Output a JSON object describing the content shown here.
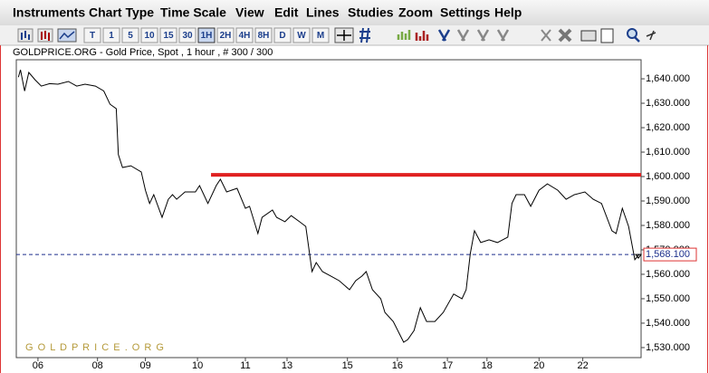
{
  "menu": [
    "Instruments",
    "Chart Type",
    "Time Scale",
    "View",
    "Edit",
    "Lines",
    "Studies",
    "Zoom",
    "Settings",
    "Help"
  ],
  "toolbar": {
    "buttons": [
      "T",
      "1",
      "5",
      "10",
      "15",
      "30",
      "1H",
      "2H",
      "4H",
      "8H",
      "D",
      "W",
      "M"
    ]
  },
  "chart_data": {
    "type": "line",
    "title": "GOLDPRICE.ORG - Gold Price, Spot , 1 hour , # 300 / 300",
    "watermark": "G O L D P R I C E . O R G",
    "x": [
      1,
      2,
      4,
      6,
      9,
      12,
      16,
      20,
      25,
      29,
      33,
      38,
      42,
      45,
      48,
      49,
      51,
      55,
      60,
      62,
      64,
      66,
      70,
      73,
      75,
      77,
      81,
      86,
      88,
      92,
      96,
      98,
      101,
      106,
      110,
      112,
      116,
      118,
      123,
      125,
      129,
      132,
      136,
      139,
      142,
      144,
      147,
      151,
      155,
      160,
      163,
      166,
      168,
      171,
      175,
      177,
      181,
      186,
      188,
      191,
      194,
      197,
      201,
      205,
      210,
      214,
      216,
      218,
      220,
      223,
      227,
      231,
      236,
      238,
      240,
      244,
      247,
      251,
      255,
      260,
      264,
      268,
      273,
      277,
      281,
      286,
      288,
      291,
      294,
      297,
      299
    ],
    "series": [
      {
        "name": "Gold Price",
        "color": "#000000",
        "values": [
          1640.7,
          1643.7,
          1635,
          1642.6,
          1639.6,
          1637,
          1638,
          1637.8,
          1638.9,
          1637,
          1637.8,
          1637,
          1635,
          1629.6,
          1627.8,
          1609,
          1603.7,
          1604.4,
          1601.9,
          1594.4,
          1589,
          1592.6,
          1583.3,
          1590.7,
          1592.6,
          1590.7,
          1593.7,
          1593.7,
          1596.3,
          1589,
          1596.3,
          1598.9,
          1593.7,
          1595.2,
          1587,
          1587.8,
          1576.7,
          1583.3,
          1586.3,
          1583.3,
          1581.5,
          1584,
          1581.5,
          1579.6,
          1561.1,
          1564.8,
          1561.1,
          1559.3,
          1557.4,
          1553.7,
          1557.4,
          1559.3,
          1561.1,
          1553.7,
          1550,
          1544.4,
          1540.7,
          1532.2,
          1533.3,
          1537,
          1546.3,
          1540.7,
          1540.7,
          1544.4,
          1551.9,
          1550,
          1553.7,
          1568.5,
          1577.8,
          1573,
          1574.1,
          1573,
          1575.2,
          1589,
          1592.6,
          1592.6,
          1587.8,
          1594.4,
          1597,
          1594.4,
          1590.7,
          1592.6,
          1593.7,
          1590.7,
          1589,
          1577.8,
          1576.7,
          1587,
          1579.6,
          1566,
          1568.1
        ]
      }
    ],
    "xlim": [
      0,
      300
    ],
    "xticks": [
      {
        "value": 10.4,
        "label": "06"
      },
      {
        "value": 39,
        "label": "08"
      },
      {
        "value": 62,
        "label": "09"
      },
      {
        "value": 87,
        "label": "10"
      },
      {
        "value": 110,
        "label": "11"
      },
      {
        "value": 130,
        "label": "13"
      },
      {
        "value": 159,
        "label": "15"
      },
      {
        "value": 183,
        "label": "16"
      },
      {
        "value": 207,
        "label": "17"
      },
      {
        "value": 226,
        "label": "18"
      },
      {
        "value": 251,
        "label": "20"
      },
      {
        "value": 272,
        "label": "22"
      }
    ],
    "ylim": [
      1525.9,
      1647.8
    ],
    "yticks": [
      {
        "value": 1530,
        "label": "1,530.000"
      },
      {
        "value": 1540,
        "label": "1,540.000"
      },
      {
        "value": 1550,
        "label": "1,550.000"
      },
      {
        "value": 1560,
        "label": "1,560.000"
      },
      {
        "value": 1570,
        "label": "1,570.000"
      },
      {
        "value": 1580,
        "label": "1,580.000"
      },
      {
        "value": 1590,
        "label": "1,590.000"
      },
      {
        "value": 1600,
        "label": "1,600.000"
      },
      {
        "value": 1610,
        "label": "1,610.000"
      },
      {
        "value": 1620,
        "label": "1,620.000"
      },
      {
        "value": 1630,
        "label": "1,630.000"
      },
      {
        "value": 1640,
        "label": "1,640.000"
      }
    ],
    "trend_line": {
      "value": 1600.7,
      "x_start": 93.5,
      "color": "#e02020"
    },
    "last_price": {
      "value": 1568.1,
      "label": "1,568.100",
      "color": "#1c2f8c"
    }
  }
}
